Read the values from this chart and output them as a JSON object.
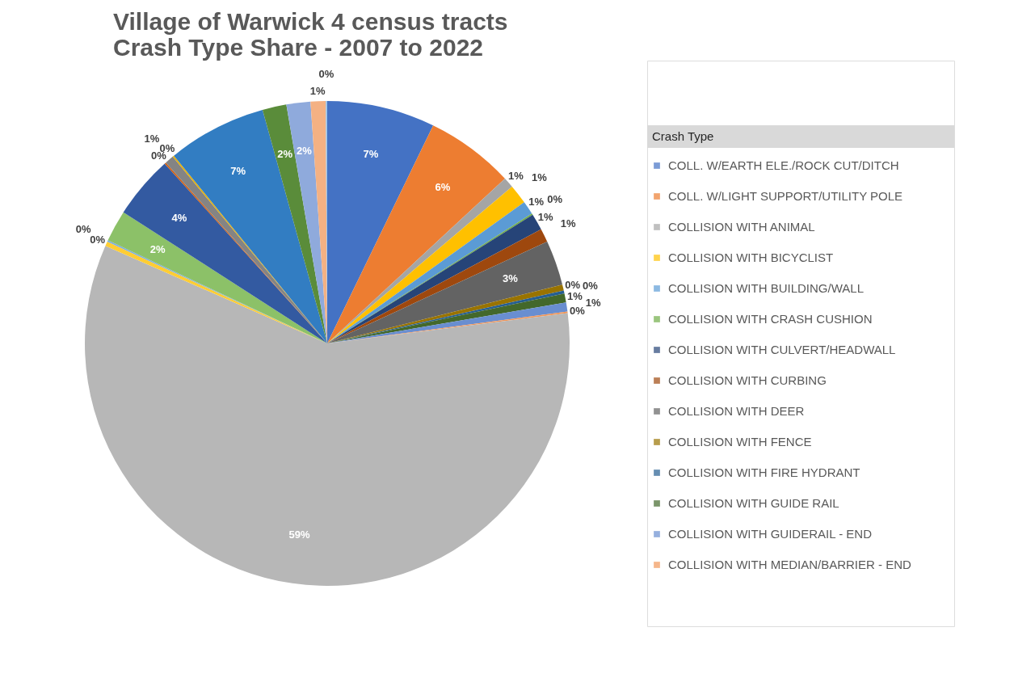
{
  "chart_data": {
    "type": "pie",
    "title": [
      "Village of Warwick 4 census tracts",
      "Crash Type Share - 2007 to 2022"
    ],
    "legend_title": "Crash Type",
    "legend": "right",
    "categories": [
      "COLL. W/EARTH ELE./ROCK CUT/DITCH",
      "COLL. W/LIGHT SUPPORT/UTILITY POLE",
      "COLLISION WITH ANIMAL",
      "COLLISION WITH BICYCLIST",
      "COLLISION WITH BUILDING/WALL",
      "COLLISION WITH CRASH CUSHION",
      "COLLISION WITH CULVERT/HEADWALL",
      "COLLISION WITH CURBING",
      "COLLISION WITH DEER",
      "COLLISION WITH FENCE",
      "COLLISION WITH FIRE HYDRANT",
      "COLLISION WITH GUIDE RAIL",
      "COLLISION WITH GUIDERAIL - END",
      "COLLISION WITH MEDIAN/BARRIER - END",
      null,
      null,
      null,
      null,
      null,
      null,
      null,
      null,
      null,
      null,
      null,
      null,
      null
    ],
    "values": [
      7.2,
      5.9,
      0.7,
      1.3,
      0.9,
      0.1,
      1.1,
      0.9,
      3.0,
      0.4,
      0.2,
      0.6,
      0.6,
      0.1,
      58.6,
      0.3,
      0.1,
      2.1,
      4.2,
      0.1,
      0.6,
      0.1,
      6.6,
      1.6,
      1.6,
      1.0,
      0.1
    ],
    "value_labels": [
      "7%",
      "6%",
      "1%",
      "1%",
      "1%",
      "0%",
      "1%",
      "1%",
      "3%",
      "0%",
      "0%",
      "1%",
      "1%",
      "0%",
      "59%",
      "0%",
      "0%",
      "2%",
      "4%",
      "0%",
      "1%",
      "0%",
      "7%",
      "2%",
      "2%",
      "1%",
      "0%"
    ],
    "colors": [
      "#4472c4",
      "#ed7d31",
      "#a5a5a5",
      "#ffc000",
      "#5b9bd5",
      "#70ad47",
      "#264478",
      "#9e480e",
      "#636363",
      "#997300",
      "#255e91",
      "#43682b",
      "#698ed0",
      "#f1975a",
      "#b7b7b7",
      "#ffcd33",
      "#7cafdd",
      "#8cc168",
      "#335aa1",
      "#d26012",
      "#848484",
      "#e6b000",
      "#327dc2",
      "#5a8c3a",
      "#8faadc",
      "#f4b183",
      "#9dc3e6"
    ]
  }
}
